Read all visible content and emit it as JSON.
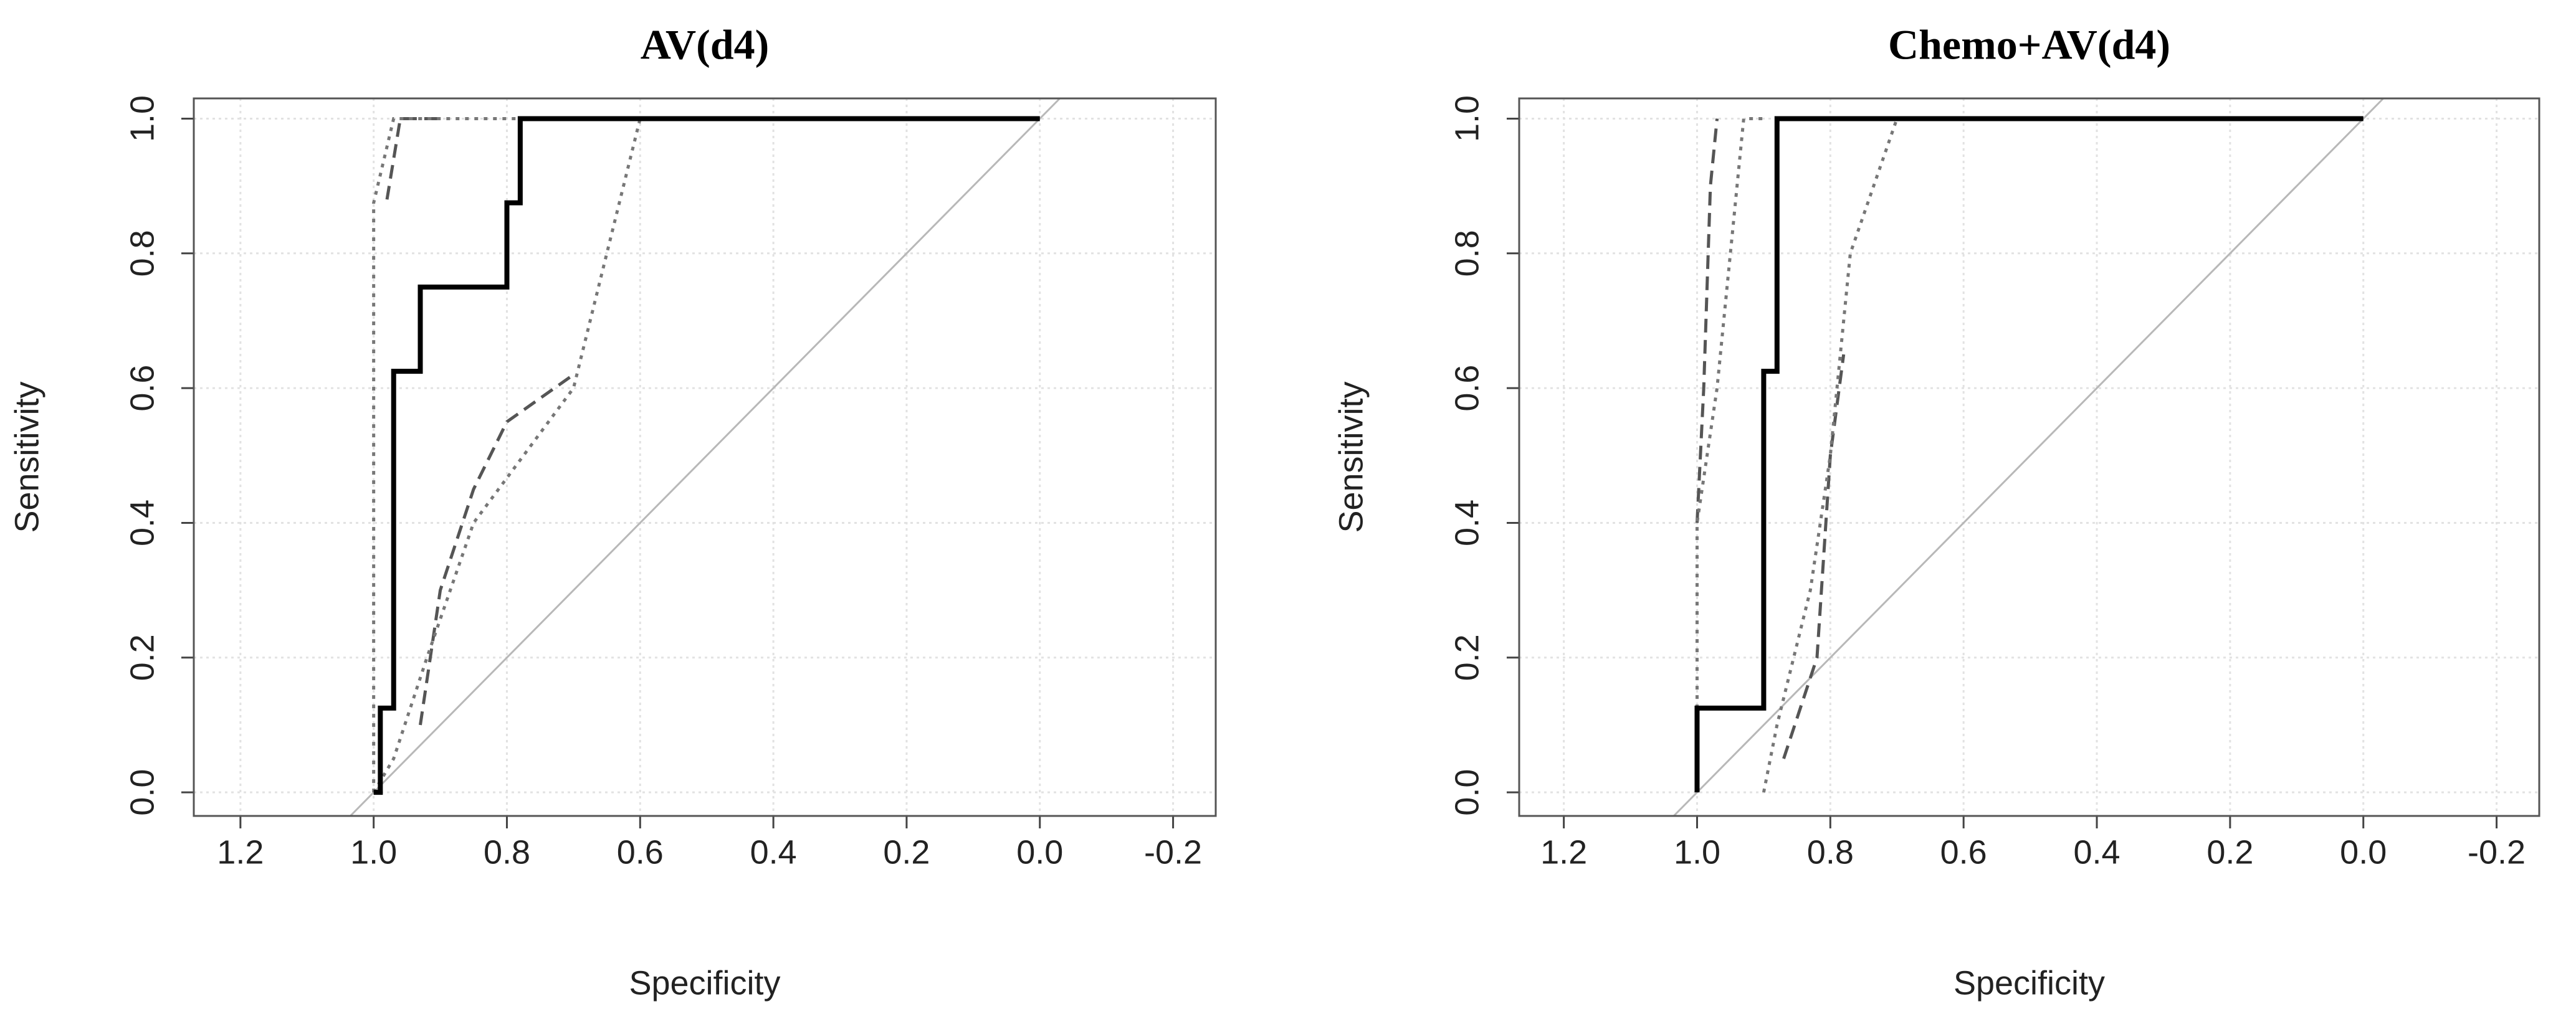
{
  "chart_data": [
    {
      "type": "line",
      "title": "AV(d4)",
      "xlabel": "Specificity",
      "ylabel": "Sensitivity",
      "xlim": [
        1.27,
        -0.264
      ],
      "ylim": [
        -0.035,
        1.03
      ],
      "grid": true,
      "xticks": [
        1.2,
        {
          "value": 1.0,
          "label": "1.0"
        },
        0.8,
        0.6,
        0.4,
        0.2,
        {
          "value": 0.0,
          "label": "0.0"
        },
        -0.2
      ],
      "yticks": [
        {
          "value": 0.0,
          "label": "0.0"
        },
        0.2,
        0.4,
        0.6,
        0.8,
        {
          "value": 1.0,
          "label": "1.0"
        }
      ],
      "series": [
        {
          "color": "#000000",
          "style": "solid",
          "x": [
            1.0,
            0.99,
            0.99,
            0.97,
            0.97,
            0.93,
            0.93,
            0.8,
            0.8,
            0.78,
            0.78,
            0.0
          ],
          "values": [
            0.0,
            0.0,
            0.125,
            0.125,
            0.625,
            0.625,
            0.75,
            0.75,
            0.875,
            0.875,
            1.0,
            1.0
          ]
        },
        {
          "color": "#777777",
          "style": "dotted",
          "x": [
            1.0,
            1.0,
            0.97,
            0.78
          ],
          "values": [
            0.0,
            0.875,
            1.0,
            1.0
          ]
        },
        {
          "color": "#777777",
          "style": "dotted",
          "x": [
            1.0,
            0.97,
            0.92,
            0.85,
            0.7,
            0.6
          ],
          "values": [
            0.0,
            0.05,
            0.2,
            0.4,
            0.6,
            1.0
          ]
        },
        {
          "color": "#555555",
          "style": "dashed",
          "x": [
            0.98,
            0.96,
            0.9
          ],
          "values": [
            0.88,
            1.0,
            1.0
          ]
        },
        {
          "color": "#555555",
          "style": "dashed",
          "x": [
            0.93,
            0.9,
            0.85,
            0.8,
            0.7
          ],
          "values": [
            0.1,
            0.3,
            0.45,
            0.55,
            0.62
          ]
        }
      ]
    },
    {
      "type": "line",
      "title": "Chemo+AV(d4)",
      "xlabel": "Specificity",
      "ylabel": "Sensitivity",
      "xlim": [
        1.267,
        -0.264
      ],
      "ylim": [
        -0.035,
        1.03
      ],
      "grid": true,
      "xticks": [
        1.2,
        {
          "value": 1.0,
          "label": "1.0"
        },
        0.8,
        0.6,
        0.4,
        0.2,
        {
          "value": 0.0,
          "label": "0.0"
        },
        -0.2
      ],
      "yticks": [
        {
          "value": 0.0,
          "label": "0.0"
        },
        0.2,
        0.4,
        0.6,
        0.8,
        {
          "value": 1.0,
          "label": "1.0"
        }
      ],
      "series": [
        {
          "color": "#000000",
          "style": "solid",
          "x": [
            1.0,
            1.0,
            0.9,
            0.9,
            0.88,
            0.88,
            0.0
          ],
          "values": [
            0.0,
            0.125,
            0.125,
            0.625,
            0.625,
            1.0,
            1.0
          ]
        },
        {
          "color": "#777777",
          "style": "dotted",
          "x": [
            1.0,
            1.0,
            0.97,
            0.95,
            0.93,
            0.9
          ],
          "values": [
            0.0,
            0.4,
            0.6,
            0.8,
            1.0,
            1.0
          ]
        },
        {
          "color": "#777777",
          "style": "dotted",
          "x": [
            0.9,
            0.88,
            0.83,
            0.8,
            0.77,
            0.7
          ],
          "values": [
            0.0,
            0.1,
            0.3,
            0.5,
            0.8,
            1.0
          ]
        },
        {
          "color": "#555555",
          "style": "dashed",
          "x": [
            1.0,
            0.99,
            0.98,
            0.97
          ],
          "values": [
            0.4,
            0.6,
            0.9,
            1.0
          ]
        },
        {
          "color": "#555555",
          "style": "dashed",
          "x": [
            0.87,
            0.82,
            0.8,
            0.78
          ],
          "values": [
            0.05,
            0.2,
            0.5,
            0.65
          ]
        }
      ]
    }
  ]
}
